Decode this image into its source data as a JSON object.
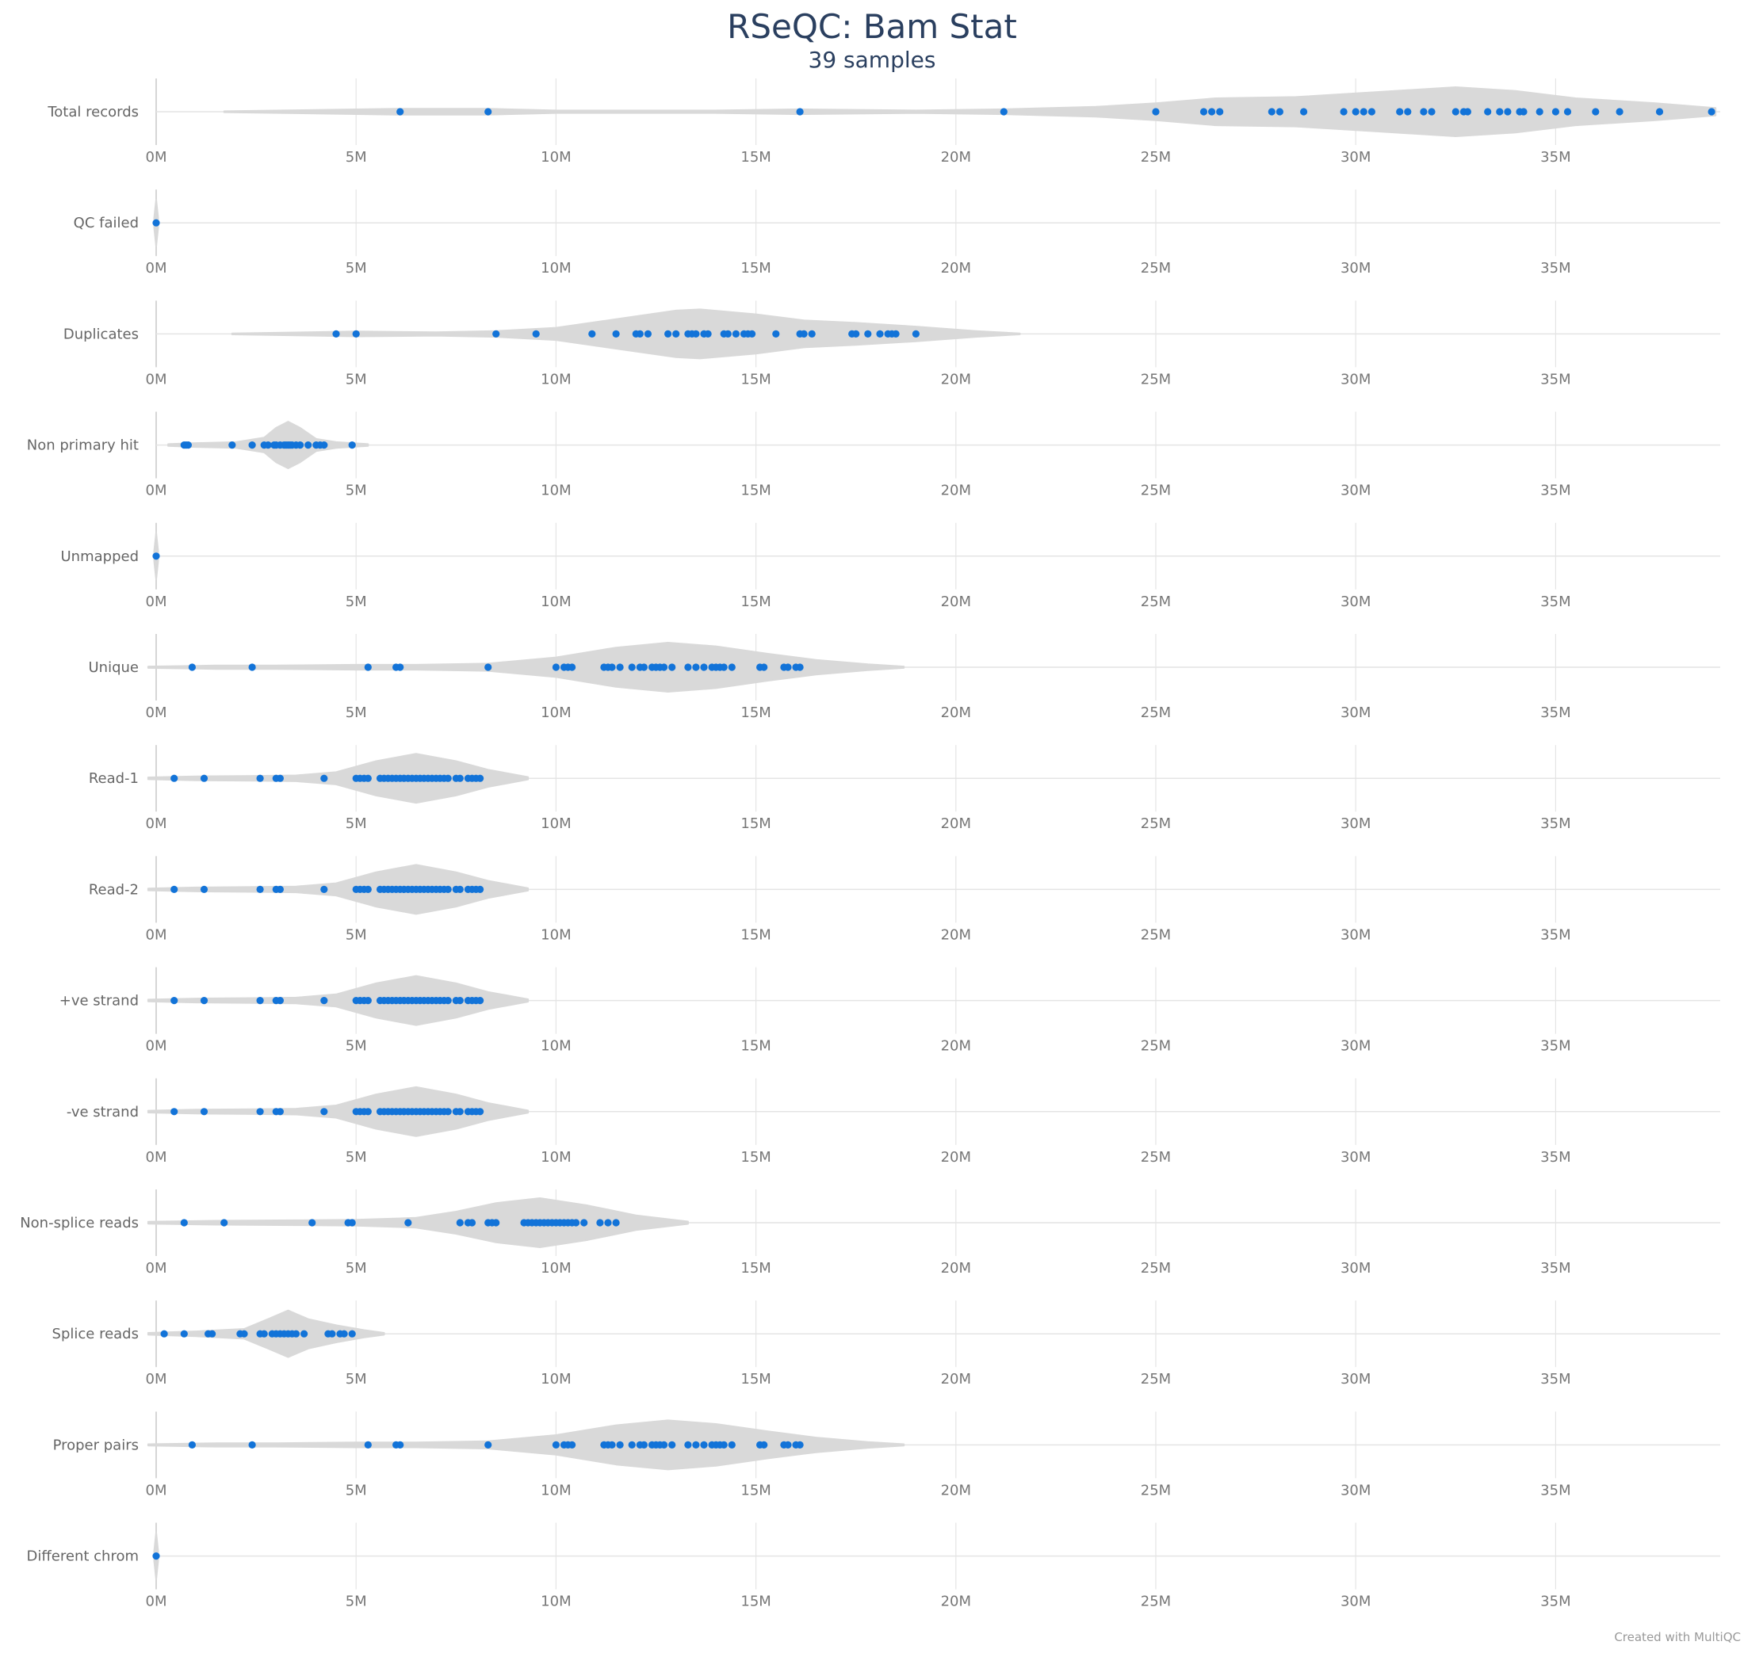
{
  "chart_data": {
    "type": "violin",
    "title": "RSeQC: Bam Stat",
    "subtitle": "39 samples",
    "footer": "Created with MultiQC",
    "x_ticks": [
      "0M",
      "5M",
      "10M",
      "15M",
      "20M",
      "25M",
      "30M",
      "35M"
    ],
    "x_tick_values": [
      0,
      5,
      10,
      15,
      20,
      25,
      30,
      35
    ],
    "x_unit": "M",
    "xlim": [
      0,
      39
    ],
    "grid": true,
    "colors": {
      "points": "#1273d8",
      "violin": "#d9d9d9",
      "grid": "#e4e4e4"
    },
    "rows": [
      {
        "label": "Total records",
        "values": [
          6.1,
          8.3,
          16.1,
          21.2,
          25.0,
          26.2,
          26.4,
          26.6,
          27.9,
          28.1,
          28.7,
          29.7,
          30.0,
          30.2,
          30.4,
          31.1,
          31.3,
          31.7,
          31.9,
          32.5,
          32.7,
          32.8,
          33.3,
          33.6,
          33.8,
          34.1,
          34.2,
          34.6,
          35.0,
          35.3,
          36.0,
          36.6,
          37.6,
          38.9
        ],
        "density": [
          [
            1.7,
            0.02
          ],
          [
            6,
            0.12
          ],
          [
            8.3,
            0.12
          ],
          [
            10,
            0.05
          ],
          [
            14,
            0.05
          ],
          [
            16.1,
            0.1
          ],
          [
            19,
            0.05
          ],
          [
            21.2,
            0.1
          ],
          [
            23.5,
            0.2
          ],
          [
            25,
            0.35
          ],
          [
            26.5,
            0.55
          ],
          [
            28.5,
            0.6
          ],
          [
            30.5,
            0.8
          ],
          [
            32.5,
            1.0
          ],
          [
            34,
            0.85
          ],
          [
            35.5,
            0.55
          ],
          [
            37.5,
            0.35
          ],
          [
            39,
            0.15
          ]
        ]
      },
      {
        "label": "QC failed",
        "values": [
          0
        ],
        "density": [
          [
            -0.05,
            0.2
          ],
          [
            0,
            0.95
          ],
          [
            0.05,
            0.2
          ]
        ]
      },
      {
        "label": "Duplicates",
        "values": [
          4.5,
          5.0,
          8.5,
          9.5,
          10.9,
          11.5,
          12.0,
          12.1,
          12.3,
          12.8,
          13.0,
          13.3,
          13.4,
          13.5,
          13.7,
          13.8,
          14.2,
          14.3,
          14.5,
          14.7,
          14.8,
          14.9,
          15.5,
          16.1,
          16.2,
          16.4,
          17.4,
          17.5,
          17.8,
          18.1,
          18.3,
          18.4,
          18.5,
          19.0
        ],
        "density": [
          [
            1.9,
            0.02
          ],
          [
            3.5,
            0.06
          ],
          [
            5,
            0.1
          ],
          [
            7,
            0.07
          ],
          [
            8.5,
            0.12
          ],
          [
            10,
            0.25
          ],
          [
            11.5,
            0.6
          ],
          [
            13,
            0.95
          ],
          [
            13.6,
            1.0
          ],
          [
            15,
            0.8
          ],
          [
            16.2,
            0.55
          ],
          [
            17.5,
            0.45
          ],
          [
            19,
            0.3
          ],
          [
            20.5,
            0.12
          ],
          [
            21.6,
            0.02
          ]
        ]
      },
      {
        "label": "Non primary hit",
        "values": [
          0.7,
          0.75,
          0.8,
          1.9,
          2.4,
          2.7,
          2.8,
          2.95,
          3.0,
          3.1,
          3.2,
          3.25,
          3.3,
          3.35,
          3.4,
          3.5,
          3.6,
          3.8,
          4.0,
          4.1,
          4.2,
          4.9
        ],
        "density": [
          [
            0.3,
            0.04
          ],
          [
            1,
            0.08
          ],
          [
            2,
            0.12
          ],
          [
            2.7,
            0.3
          ],
          [
            3.0,
            0.7
          ],
          [
            3.3,
            0.95
          ],
          [
            3.6,
            0.7
          ],
          [
            4.0,
            0.25
          ],
          [
            4.5,
            0.12
          ],
          [
            5.3,
            0.04
          ]
        ]
      },
      {
        "label": "Unmapped",
        "values": [
          0
        ],
        "density": [
          [
            -0.05,
            0.2
          ],
          [
            0,
            0.95
          ],
          [
            0.05,
            0.2
          ]
        ]
      },
      {
        "label": "Unique",
        "values": [
          0.9,
          2.4,
          5.3,
          6.0,
          6.1,
          8.3,
          10.0,
          10.2,
          10.3,
          10.4,
          11.2,
          11.3,
          11.4,
          11.6,
          11.9,
          12.1,
          12.2,
          12.4,
          12.5,
          12.6,
          12.7,
          12.9,
          13.3,
          13.5,
          13.7,
          13.9,
          14.0,
          14.1,
          14.2,
          14.4,
          15.1,
          15.2,
          15.7,
          15.8,
          16.0,
          16.1
        ],
        "density": [
          [
            -0.2,
            0.03
          ],
          [
            1.5,
            0.07
          ],
          [
            3,
            0.07
          ],
          [
            5,
            0.1
          ],
          [
            6.5,
            0.1
          ],
          [
            8.3,
            0.15
          ],
          [
            10,
            0.4
          ],
          [
            11.5,
            0.8
          ],
          [
            12.8,
            1.0
          ],
          [
            14,
            0.85
          ],
          [
            15.3,
            0.55
          ],
          [
            16.5,
            0.3
          ],
          [
            17.8,
            0.12
          ],
          [
            18.7,
            0.03
          ]
        ]
      },
      {
        "label": "Read-1",
        "values": [
          0.45,
          1.2,
          2.6,
          3.0,
          3.1,
          4.2,
          5.0,
          5.1,
          5.2,
          5.3,
          5.6,
          5.7,
          5.8,
          5.9,
          6.0,
          6.1,
          6.2,
          6.3,
          6.4,
          6.5,
          6.6,
          6.7,
          6.8,
          6.9,
          7.0,
          7.1,
          7.2,
          7.3,
          7.5,
          7.6,
          7.8,
          7.9,
          8.0,
          8.1
        ],
        "density": [
          [
            -0.2,
            0.04
          ],
          [
            1,
            0.08
          ],
          [
            2.5,
            0.1
          ],
          [
            3.5,
            0.12
          ],
          [
            4.5,
            0.25
          ],
          [
            5.5,
            0.7
          ],
          [
            6.5,
            1.0
          ],
          [
            7.5,
            0.7
          ],
          [
            8.3,
            0.35
          ],
          [
            9.3,
            0.05
          ]
        ]
      },
      {
        "label": "Read-2",
        "values": [
          0.45,
          1.2,
          2.6,
          3.0,
          3.1,
          4.2,
          5.0,
          5.1,
          5.2,
          5.3,
          5.6,
          5.7,
          5.8,
          5.9,
          6.0,
          6.1,
          6.2,
          6.3,
          6.4,
          6.5,
          6.6,
          6.7,
          6.8,
          6.9,
          7.0,
          7.1,
          7.2,
          7.3,
          7.5,
          7.6,
          7.8,
          7.9,
          8.0,
          8.1
        ],
        "density": [
          [
            -0.2,
            0.04
          ],
          [
            1,
            0.08
          ],
          [
            2.5,
            0.1
          ],
          [
            3.5,
            0.12
          ],
          [
            4.5,
            0.25
          ],
          [
            5.5,
            0.7
          ],
          [
            6.5,
            1.0
          ],
          [
            7.5,
            0.7
          ],
          [
            8.3,
            0.35
          ],
          [
            9.3,
            0.05
          ]
        ]
      },
      {
        "label": "+ve strand",
        "values": [
          0.45,
          1.2,
          2.6,
          3.0,
          3.1,
          4.2,
          5.0,
          5.1,
          5.2,
          5.3,
          5.6,
          5.7,
          5.8,
          5.9,
          6.0,
          6.1,
          6.2,
          6.3,
          6.4,
          6.5,
          6.6,
          6.7,
          6.8,
          6.9,
          7.0,
          7.1,
          7.2,
          7.3,
          7.5,
          7.6,
          7.8,
          7.9,
          8.0,
          8.1
        ],
        "density": [
          [
            -0.2,
            0.04
          ],
          [
            1,
            0.08
          ],
          [
            2.5,
            0.1
          ],
          [
            3.5,
            0.12
          ],
          [
            4.5,
            0.25
          ],
          [
            5.5,
            0.7
          ],
          [
            6.5,
            1.0
          ],
          [
            7.5,
            0.7
          ],
          [
            8.3,
            0.35
          ],
          [
            9.3,
            0.05
          ]
        ]
      },
      {
        "label": "-ve strand",
        "values": [
          0.45,
          1.2,
          2.6,
          3.0,
          3.1,
          4.2,
          5.0,
          5.1,
          5.2,
          5.3,
          5.6,
          5.7,
          5.8,
          5.9,
          6.0,
          6.1,
          6.2,
          6.3,
          6.4,
          6.5,
          6.6,
          6.7,
          6.8,
          6.9,
          7.0,
          7.1,
          7.2,
          7.3,
          7.5,
          7.6,
          7.8,
          7.9,
          8.0,
          8.1
        ],
        "density": [
          [
            -0.2,
            0.04
          ],
          [
            1,
            0.08
          ],
          [
            2.5,
            0.1
          ],
          [
            3.5,
            0.12
          ],
          [
            4.5,
            0.25
          ],
          [
            5.5,
            0.7
          ],
          [
            6.5,
            1.0
          ],
          [
            7.5,
            0.7
          ],
          [
            8.3,
            0.35
          ],
          [
            9.3,
            0.05
          ]
        ]
      },
      {
        "label": "Non-splice reads",
        "values": [
          0.7,
          1.7,
          3.9,
          4.8,
          4.9,
          6.3,
          7.6,
          7.8,
          7.9,
          8.3,
          8.4,
          8.5,
          9.2,
          9.3,
          9.4,
          9.5,
          9.6,
          9.7,
          9.8,
          9.9,
          10.0,
          10.1,
          10.2,
          10.3,
          10.4,
          10.5,
          10.7,
          11.1,
          11.3,
          11.5
        ],
        "density": [
          [
            -0.2,
            0.04
          ],
          [
            1.5,
            0.08
          ],
          [
            3.5,
            0.1
          ],
          [
            5,
            0.12
          ],
          [
            6.5,
            0.2
          ],
          [
            7.5,
            0.45
          ],
          [
            8.5,
            0.8
          ],
          [
            9.6,
            1.0
          ],
          [
            10.8,
            0.7
          ],
          [
            12,
            0.3
          ],
          [
            13.3,
            0.05
          ]
        ]
      },
      {
        "label": "Splice reads",
        "values": [
          0.2,
          0.7,
          1.3,
          1.4,
          2.1,
          2.2,
          2.6,
          2.7,
          2.9,
          3.0,
          3.1,
          3.2,
          3.3,
          3.4,
          3.5,
          3.7,
          4.3,
          4.4,
          4.6,
          4.7,
          4.9
        ],
        "density": [
          [
            -0.2,
            0.04
          ],
          [
            1,
            0.1
          ],
          [
            2.2,
            0.2
          ],
          [
            2.8,
            0.6
          ],
          [
            3.3,
            0.95
          ],
          [
            3.8,
            0.6
          ],
          [
            4.5,
            0.35
          ],
          [
            5.2,
            0.15
          ],
          [
            5.7,
            0.04
          ]
        ]
      },
      {
        "label": "Proper pairs",
        "values": [
          0.9,
          2.4,
          5.3,
          6.0,
          6.1,
          8.3,
          10.0,
          10.2,
          10.3,
          10.4,
          11.2,
          11.3,
          11.4,
          11.6,
          11.9,
          12.1,
          12.2,
          12.4,
          12.5,
          12.6,
          12.7,
          12.9,
          13.3,
          13.5,
          13.7,
          13.9,
          14.0,
          14.1,
          14.2,
          14.4,
          15.1,
          15.2,
          15.7,
          15.8,
          16.0,
          16.1
        ],
        "density": [
          [
            -0.2,
            0.03
          ],
          [
            1.5,
            0.07
          ],
          [
            3,
            0.07
          ],
          [
            5,
            0.1
          ],
          [
            6.5,
            0.1
          ],
          [
            8.3,
            0.15
          ],
          [
            10,
            0.4
          ],
          [
            11.5,
            0.8
          ],
          [
            12.8,
            1.0
          ],
          [
            14,
            0.85
          ],
          [
            15.3,
            0.55
          ],
          [
            16.5,
            0.3
          ],
          [
            17.8,
            0.12
          ],
          [
            18.7,
            0.03
          ]
        ]
      },
      {
        "label": "Different chrom",
        "values": [
          0
        ],
        "density": [
          [
            -0.05,
            0.2
          ],
          [
            0,
            0.95
          ],
          [
            0.05,
            0.2
          ]
        ]
      }
    ]
  }
}
